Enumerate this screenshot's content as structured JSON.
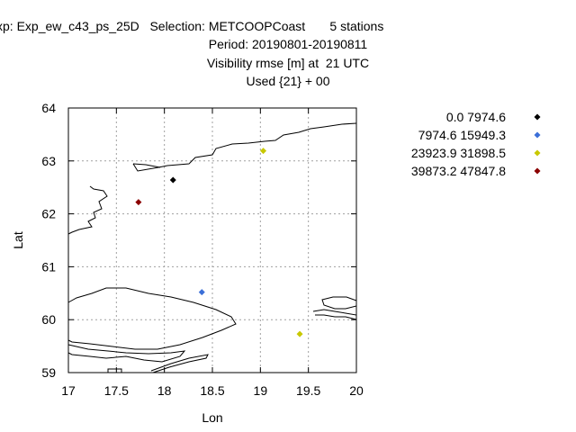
{
  "header": {
    "line1": "xp: Exp_ew_c43_ps_25D   Selection: METCOOPCoast       5 stations",
    "line2": "Period: 20190801-20190811",
    "line3": "Visibility rmse [m] at  21 UTC",
    "line4": "Used {21} + 00"
  },
  "chart_data": {
    "type": "scatter",
    "title": "Visibility rmse [m] at  21 UTC",
    "xlabel": "Lon",
    "ylabel": "Lat",
    "xlim": [
      17,
      20
    ],
    "ylim": [
      59,
      64
    ],
    "xticks": [
      "17",
      "17.5",
      "18",
      "18.5",
      "19",
      "19.5",
      "20"
    ],
    "yticks": [
      "59",
      "60",
      "61",
      "62",
      "63",
      "64"
    ],
    "grid": true,
    "legend_position": "right",
    "series": [
      {
        "name": "0.0 7974.6",
        "color": "#000000",
        "points": [
          [
            18.09,
            62.64
          ]
        ]
      },
      {
        "name": "7974.6 15949.3",
        "color": "#3b6fd8",
        "points": [
          [
            18.39,
            60.52
          ]
        ]
      },
      {
        "name": "23923.9 31898.5",
        "color": "#c8c800",
        "points": [
          [
            19.03,
            63.19
          ],
          [
            19.41,
            59.73
          ]
        ]
      },
      {
        "name": "39873.2 47847.8",
        "color": "#8b0000",
        "points": [
          [
            17.73,
            62.22
          ]
        ]
      }
    ]
  }
}
